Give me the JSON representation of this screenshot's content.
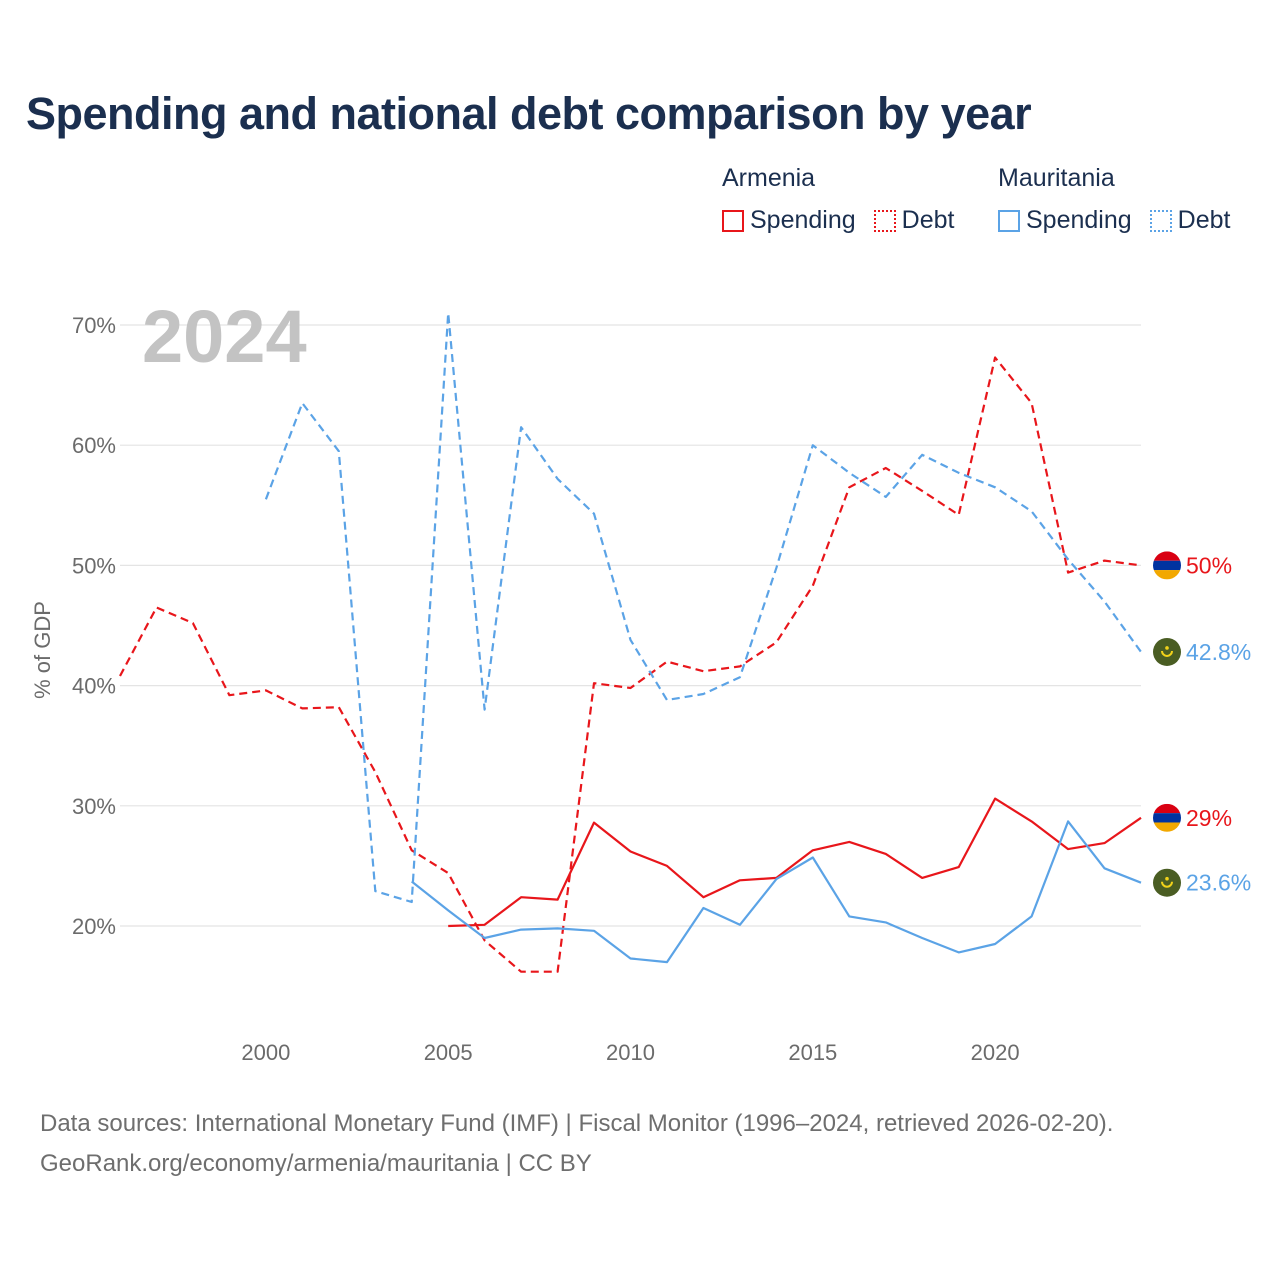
{
  "title": "Spending and national debt comparison by year",
  "legend": {
    "group1": {
      "country": "Armenia",
      "spending": "Spending",
      "debt": "Debt",
      "color": "#e8161b"
    },
    "group2": {
      "country": "Mauritania",
      "spending": "Spending",
      "debt": "Debt",
      "color": "#5ba3e6"
    }
  },
  "footer": {
    "line1": "Data sources: International Monetary Fund (IMF) | Fiscal Monitor (1996–2024, retrieved 2026-02-20).",
    "line2": "GeoRank.org/economy/armenia/mauritania | CC BY"
  },
  "chart_data": {
    "type": "line",
    "title": "Spending and national debt comparison by year",
    "year_label": "2024",
    "ylabel": "% of GDP",
    "xlabel": "",
    "xlim": [
      1996,
      2024
    ],
    "ylim": [
      13,
      72
    ],
    "x_ticks": [
      2000,
      2005,
      2010,
      2015,
      2020
    ],
    "y_ticks": [
      20,
      30,
      40,
      50,
      60,
      70
    ],
    "y_tick_labels": [
      "20%",
      "30%",
      "40%",
      "50%",
      "60%",
      "70%"
    ],
    "grid": true,
    "legend_position": "top-right",
    "series": [
      {
        "name": "Armenia Spending",
        "country": "Armenia",
        "measure": "Spending",
        "color": "#e8161b",
        "dashed": false,
        "flag": "armenia",
        "end_label": "29%",
        "points": [
          [
            2005,
            20
          ],
          [
            2006,
            20.1
          ],
          [
            2007,
            22.4
          ],
          [
            2008,
            22.2
          ],
          [
            2009,
            28.6
          ],
          [
            2010,
            26.2
          ],
          [
            2011,
            25
          ],
          [
            2012,
            22.4
          ],
          [
            2013,
            23.8
          ],
          [
            2014,
            24
          ],
          [
            2015,
            26.3
          ],
          [
            2016,
            27
          ],
          [
            2017,
            26
          ],
          [
            2018,
            24
          ],
          [
            2019,
            24.9
          ],
          [
            2020,
            30.6
          ],
          [
            2021,
            28.7
          ],
          [
            2022,
            26.4
          ],
          [
            2023,
            26.9
          ],
          [
            2024,
            29
          ]
        ]
      },
      {
        "name": "Armenia Debt",
        "country": "Armenia",
        "measure": "Debt",
        "color": "#e8161b",
        "dashed": true,
        "flag": "armenia",
        "end_label": "50%",
        "points": [
          [
            1996,
            40.8
          ],
          [
            1997,
            46.5
          ],
          [
            1998,
            45.2
          ],
          [
            1999,
            39.2
          ],
          [
            2000,
            39.6
          ],
          [
            2001,
            38.1
          ],
          [
            2002,
            38.2
          ],
          [
            2003,
            32.8
          ],
          [
            2004,
            26.3
          ],
          [
            2005,
            24.4
          ],
          [
            2006,
            18.8
          ],
          [
            2007,
            16.2
          ],
          [
            2008,
            16.2
          ],
          [
            2009,
            40.2
          ],
          [
            2010,
            39.8
          ],
          [
            2011,
            42
          ],
          [
            2012,
            41.2
          ],
          [
            2013,
            41.6
          ],
          [
            2014,
            43.6
          ],
          [
            2015,
            48.3
          ],
          [
            2016,
            56.5
          ],
          [
            2017,
            58.1
          ],
          [
            2018,
            56.2
          ],
          [
            2019,
            54.2
          ],
          [
            2020,
            67.3
          ],
          [
            2021,
            63.5
          ],
          [
            2022,
            49.4
          ],
          [
            2023,
            50.4
          ],
          [
            2024,
            50
          ]
        ]
      },
      {
        "name": "Mauritania Spending",
        "country": "Mauritania",
        "measure": "Spending",
        "color": "#5ba3e6",
        "dashed": false,
        "flag": "mauritania",
        "end_label": "23.6%",
        "points": [
          [
            2004,
            23.7
          ],
          [
            2005,
            21.3
          ],
          [
            2006,
            19
          ],
          [
            2007,
            19.7
          ],
          [
            2008,
            19.8
          ],
          [
            2009,
            19.6
          ],
          [
            2010,
            17.3
          ],
          [
            2011,
            17
          ],
          [
            2012,
            21.5
          ],
          [
            2013,
            20.1
          ],
          [
            2014,
            23.9
          ],
          [
            2015,
            25.7
          ],
          [
            2016,
            20.8
          ],
          [
            2017,
            20.3
          ],
          [
            2018,
            19
          ],
          [
            2019,
            17.8
          ],
          [
            2020,
            18.5
          ],
          [
            2021,
            20.8
          ],
          [
            2022,
            28.7
          ],
          [
            2023,
            24.8
          ],
          [
            2024,
            23.6
          ]
        ]
      },
      {
        "name": "Mauritania Debt",
        "country": "Mauritania",
        "measure": "Debt",
        "color": "#5ba3e6",
        "dashed": true,
        "flag": "mauritania",
        "end_label": "42.8%",
        "points": [
          [
            2000,
            55.5
          ],
          [
            2001,
            63.5
          ],
          [
            2002,
            59.5
          ],
          [
            2003,
            22.9
          ],
          [
            2004,
            22
          ],
          [
            2005,
            71
          ],
          [
            2006,
            38
          ],
          [
            2007,
            61.5
          ],
          [
            2008,
            57.2
          ],
          [
            2009,
            54.3
          ],
          [
            2010,
            43.8
          ],
          [
            2011,
            38.8
          ],
          [
            2012,
            39.3
          ],
          [
            2013,
            40.7
          ],
          [
            2014,
            49.8
          ],
          [
            2015,
            60
          ],
          [
            2016,
            57.7
          ],
          [
            2017,
            55.7
          ],
          [
            2018,
            59.2
          ],
          [
            2019,
            57.7
          ],
          [
            2020,
            56.5
          ],
          [
            2021,
            54.5
          ],
          [
            2022,
            50.5
          ],
          [
            2023,
            47
          ],
          [
            2024,
            42.8
          ]
        ]
      }
    ]
  }
}
